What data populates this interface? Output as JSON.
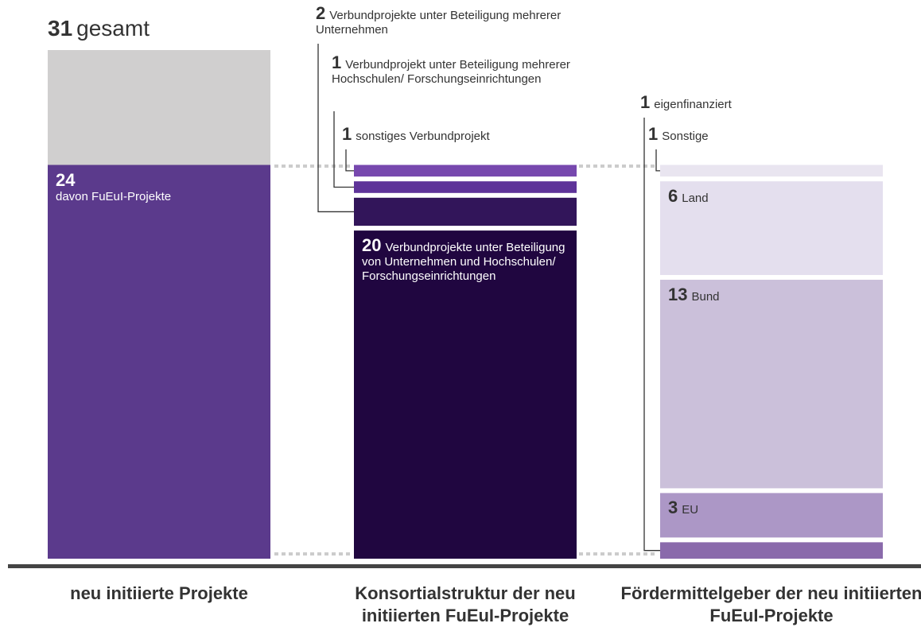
{
  "chart_data": {
    "type": "stacked-bar",
    "columns": [
      {
        "title": "neu initiierte Projekte",
        "total": {
          "value": 31,
          "label": "gesamt",
          "color": "#d0cfcf"
        },
        "segments": [
          {
            "value": 24,
            "label": "davon FuEuI-Projekte",
            "color": "#5b3a8c"
          }
        ]
      },
      {
        "title": "Konsortialstruktur der neu initiierten FuEuI-Projekte",
        "segments": [
          {
            "value": 20,
            "label": "Verbundprojekte unter Beteiligung von Unternehmen und Hochschulen/ Forschungseinrichtungen",
            "color": "#200640"
          },
          {
            "value": 2,
            "label": "Verbundprojekte unter Beteiligung mehrerer Unternehmen",
            "color": "#32155a"
          },
          {
            "value": 1,
            "label": "Verbundprojekt unter Beteiligung mehrerer Hochschulen/ Forschungseinrichtungen",
            "color": "#5e3399"
          },
          {
            "value": 1,
            "label": "sonstiges Verbundprojekt",
            "color": "#7748ae"
          }
        ]
      },
      {
        "title": "Fördermittelgeber der neu initiierten FuEuI-Projekte",
        "segments": [
          {
            "value": 1,
            "label": "eigenfinanziert",
            "color": "#8a6aab"
          },
          {
            "value": 3,
            "label": "EU",
            "color": "#ac97c6"
          },
          {
            "value": 13,
            "label": "Bund",
            "color": "#cbc0da"
          },
          {
            "value": 6,
            "label": "Land",
            "color": "#e4dfee"
          },
          {
            "value": 1,
            "label": "Sonstige",
            "color": "#e9e5f0"
          }
        ]
      }
    ]
  }
}
